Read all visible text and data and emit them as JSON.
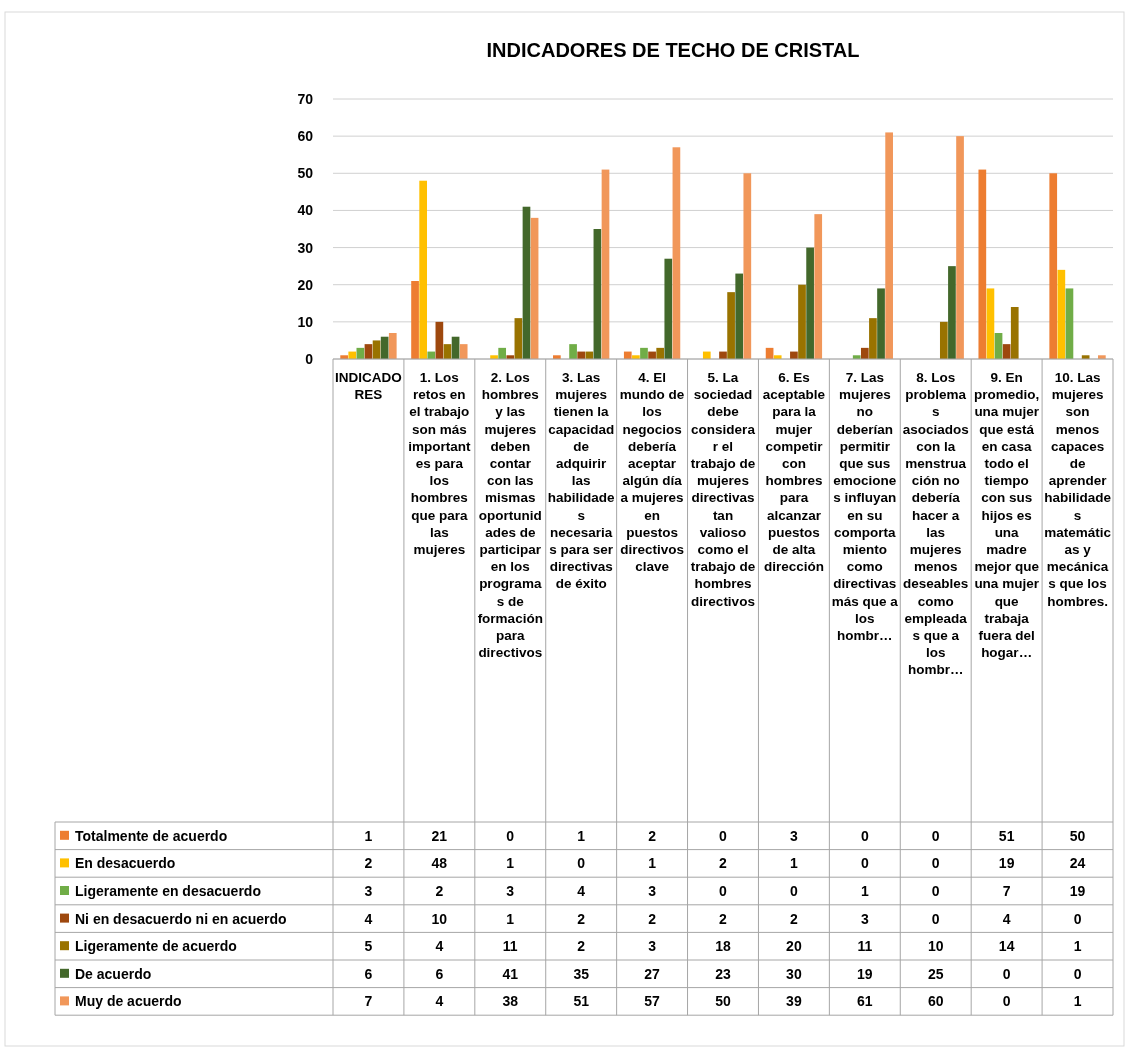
{
  "chart_data": {
    "type": "bar",
    "title": "INDICADORES DE TECHO DE CRISTAL",
    "categories": [
      "INDICADORES",
      "1. Los retos en el trabajo son más importantes para los hombres que para las mujeres",
      "2. Los hombres y las mujeres deben contar con las mismas oportunidades de participar en los programas de formación para directivos",
      "3. Las mujeres tienen la capacidad de adquirir las habilidades necesarias para ser directivas de éxito",
      "4. El mundo de los negocios debería aceptar algún día a mujeres en puestos directivos clave",
      "5. La sociedad debe considerar el trabajo de mujeres directivas tan valioso como el trabajo de hombres directivos",
      "6. Es aceptable para la mujer competir con hombres para alcanzar puestos de alta dirección",
      "7. Las mujeres no deberían permitir que sus emociones influyan en su comportamiento como directivas más que a los hombr…",
      "8. Los problemas asociados con la menstruación no debería hacer a las mujeres menos deseables como empleadas que a los hombr…",
      "9. En promedio, una mujer que está en casa todo el tiempo con sus hijos es una madre mejor que una mujer que trabaja fuera del hogar…",
      "10. Las mujeres son menos capaces de aprender habilidades matemáticas y mecánicas que los hombres."
    ],
    "series": [
      {
        "name": "Totalmente de acuerdo",
        "color": "#ed7d31",
        "values": [
          1,
          21,
          0,
          1,
          2,
          0,
          3,
          0,
          0,
          51,
          50
        ]
      },
      {
        "name": "En desacuerdo",
        "color": "#ffc000",
        "values": [
          2,
          48,
          1,
          0,
          1,
          2,
          1,
          0,
          0,
          19,
          24
        ]
      },
      {
        "name": "Ligeramente en desacuerdo",
        "color": "#70ad47",
        "values": [
          3,
          2,
          3,
          4,
          3,
          0,
          0,
          1,
          0,
          7,
          19
        ]
      },
      {
        "name": "Ni en desacuerdo ni en acuerdo",
        "color": "#9e480e",
        "values": [
          4,
          10,
          1,
          2,
          2,
          2,
          2,
          3,
          0,
          4,
          0
        ]
      },
      {
        "name": "Ligeramente de acuerdo",
        "color": "#997300",
        "values": [
          5,
          4,
          11,
          2,
          3,
          18,
          20,
          11,
          10,
          14,
          1
        ]
      },
      {
        "name": "De acuerdo",
        "color": "#43682b",
        "values": [
          6,
          6,
          41,
          35,
          27,
          23,
          30,
          19,
          25,
          0,
          0
        ]
      },
      {
        "name": "Muy de acuerdo",
        "color": "#f1975a",
        "values": [
          7,
          4,
          38,
          51,
          57,
          50,
          39,
          61,
          60,
          0,
          1
        ]
      }
    ],
    "ylim": [
      0,
      70
    ],
    "yticks": [
      0,
      10,
      20,
      30,
      40,
      50,
      60,
      70
    ],
    "grid": "y",
    "legend": "left",
    "data_labels": true
  }
}
